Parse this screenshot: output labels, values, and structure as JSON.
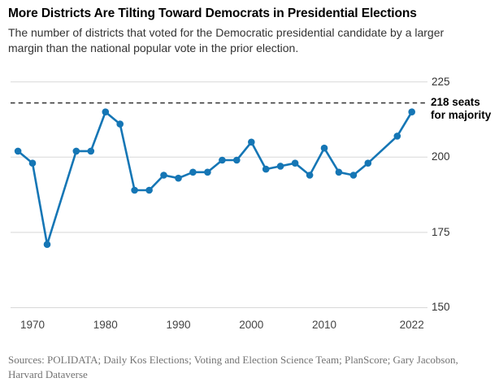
{
  "header": {
    "title": "More Districts Are Tilting Toward Democrats in Presidential Elections",
    "subtitle": "The number of districts that voted for the Democratic presidential candidate by a larger margin than the national popular vote in the prior election."
  },
  "chart_data": {
    "type": "line",
    "series_name": "Districts voting more Democratic than the national popular vote",
    "x": [
      1968,
      1970,
      1972,
      1976,
      1978,
      1980,
      1982,
      1984,
      1986,
      1988,
      1990,
      1992,
      1994,
      1996,
      1998,
      2000,
      2002,
      2004,
      2006,
      2008,
      2010,
      2012,
      2014,
      2016,
      2020,
      2022
    ],
    "values": [
      202,
      198,
      171,
      202,
      202,
      215,
      211,
      189,
      189,
      194,
      193,
      195,
      195,
      199,
      199,
      205,
      196,
      197,
      198,
      194,
      203,
      195,
      194,
      198,
      207,
      215
    ],
    "x_ticks": [
      "1970",
      "1980",
      "1990",
      "2000",
      "2010",
      "2022"
    ],
    "x_tick_years": [
      1970,
      1980,
      1990,
      2000,
      2010,
      2022
    ],
    "y_ticks": [
      225,
      200,
      175,
      150
    ],
    "ylim": [
      150,
      225
    ],
    "xlim": [
      1968,
      2022
    ],
    "grid": true,
    "legend_position": "none",
    "reference_line": {
      "value": 218,
      "label_line1": "218 seats",
      "label_line2": "for majority"
    },
    "colors": {
      "line": "#1576b5",
      "grid": "#d8d8d8",
      "reference_dash": "#333333"
    }
  },
  "footer": {
    "sources": "Sources: POLIDATA; Daily Kos Elections; Voting and Election Science Team; PlanScore; Gary Jacobson, Harvard Dataverse"
  }
}
